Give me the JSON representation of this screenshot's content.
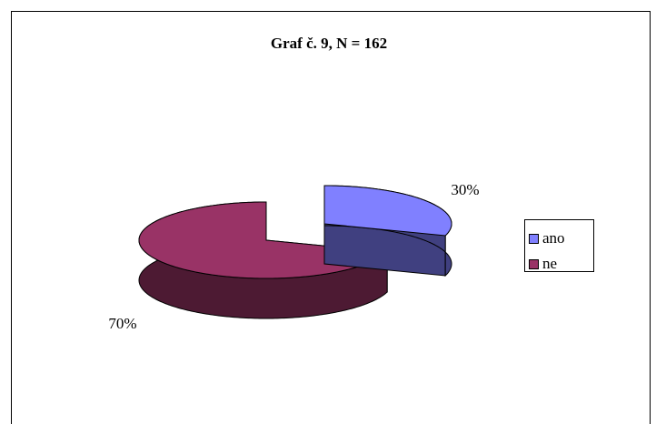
{
  "chart_data": {
    "type": "pie",
    "title": "Graf č. 9, N = 162",
    "categories": [
      "ano",
      "ne"
    ],
    "values": [
      30,
      70
    ],
    "value_labels": [
      "30%",
      "70%"
    ],
    "colors": [
      "#8080ff",
      "#993366"
    ],
    "legend": "right"
  }
}
